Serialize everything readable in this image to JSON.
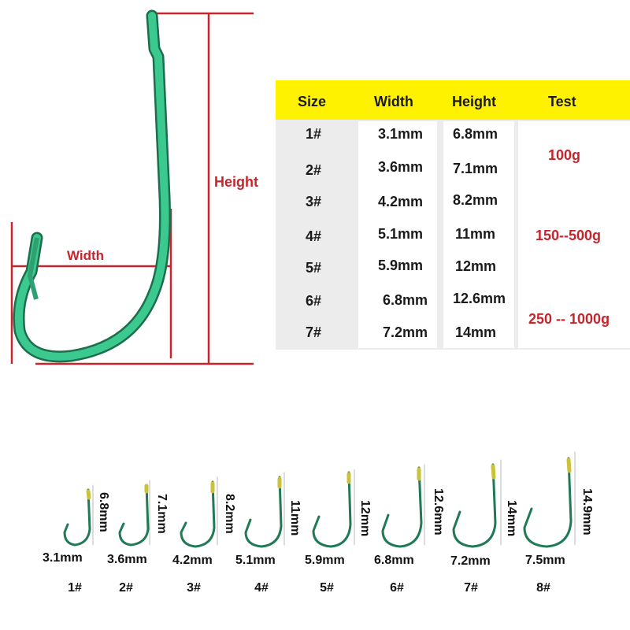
{
  "diagram": {
    "height_label": "Height",
    "width_label": "Width"
  },
  "table": {
    "headers": [
      "Size",
      "Width",
      "Height",
      "Test"
    ],
    "rows": [
      {
        "size": "1#",
        "width": "3.1mm",
        "height": "6.8mm"
      },
      {
        "size": "2#",
        "width": "3.6mm",
        "height": "7.1mm"
      },
      {
        "size": "3#",
        "width": "4.2mm",
        "height": "8.2mm"
      },
      {
        "size": "4#",
        "width": "5.1mm",
        "height": "11mm"
      },
      {
        "size": "5#",
        "width": "5.9mm",
        "height": "12mm"
      },
      {
        "size": "6#",
        "width": "6.8mm",
        "height": "12.6mm"
      },
      {
        "size": "7#",
        "width": "7.2mm",
        "height": "14mm"
      }
    ],
    "tests": [
      "100g",
      "150--500g",
      "250 -- 1000g"
    ]
  },
  "hooks": [
    {
      "size": "1#",
      "width": "3.1mm",
      "height": "6.8mm"
    },
    {
      "size": "2#",
      "width": "3.6mm",
      "height": "7.1mm"
    },
    {
      "size": "3#",
      "width": "4.2mm",
      "height": "8.2mm"
    },
    {
      "size": "4#",
      "width": "5.1mm",
      "height": "11mm"
    },
    {
      "size": "5#",
      "width": "5.9mm",
      "height": "12mm"
    },
    {
      "size": "6#",
      "width": "6.8mm",
      "height": "12.6mm"
    },
    {
      "size": "7#",
      "width": "7.2mm",
      "height": "14mm"
    },
    {
      "size": "8#",
      "width": "7.5mm",
      "height": "14.9mm"
    }
  ],
  "colors": {
    "accent_red": "#c8242c",
    "header_yellow": "#fff200",
    "hook_green": "#2fa072"
  }
}
